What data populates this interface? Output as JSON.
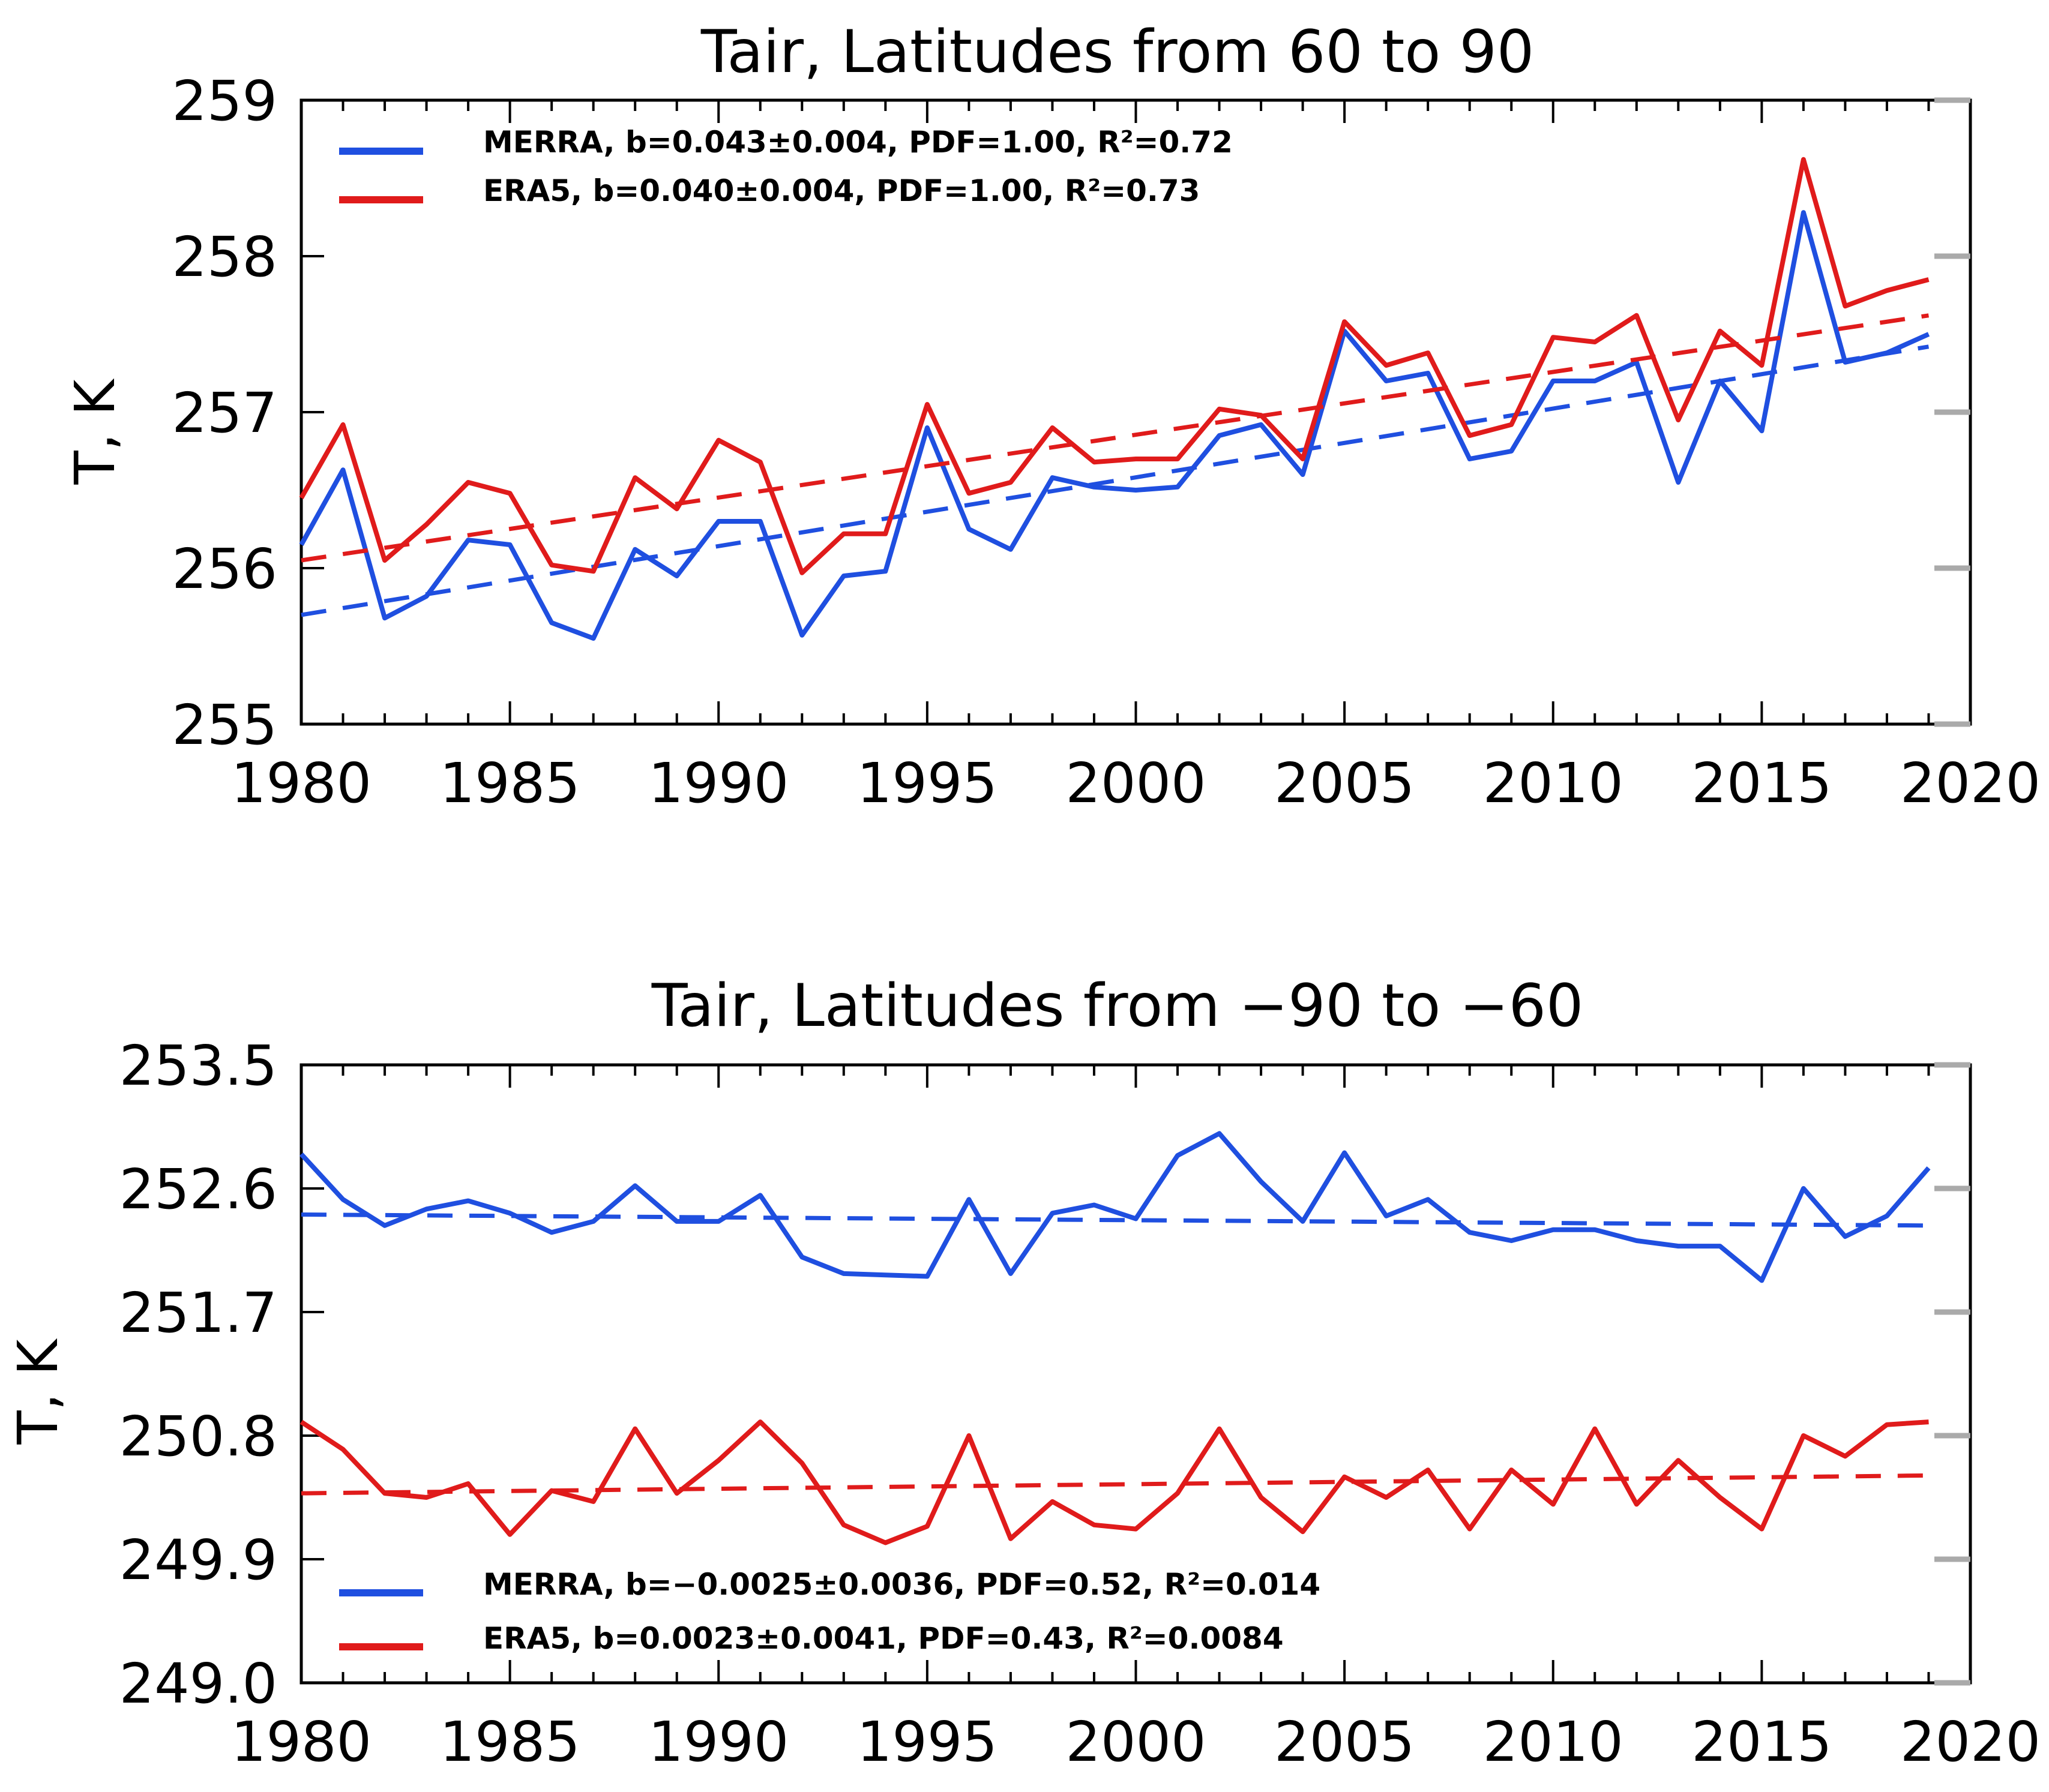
{
  "chart_data": [
    {
      "type": "line",
      "title": "Tair, Latitudes from 60 to 90",
      "xlabel": "",
      "ylabel": "T, K",
      "xlim": [
        1980,
        2020
      ],
      "ylim": [
        255,
        259
      ],
      "xticks": [
        1980,
        1985,
        1990,
        1995,
        2000,
        2005,
        2010,
        2015,
        2020
      ],
      "yticks": [
        255,
        256,
        257,
        258,
        259
      ],
      "ytick_labels": [
        "255",
        "256",
        "257",
        "258",
        "259"
      ],
      "grid": false,
      "legend_position": "top-left",
      "x": [
        1980,
        1981,
        1982,
        1983,
        1984,
        1985,
        1986,
        1987,
        1988,
        1989,
        1990,
        1991,
        1992,
        1993,
        1994,
        1995,
        1996,
        1997,
        1998,
        1999,
        2000,
        2001,
        2002,
        2003,
        2004,
        2005,
        2006,
        2007,
        2008,
        2009,
        2010,
        2011,
        2012,
        2013,
        2014,
        2015,
        2016,
        2017,
        2018,
        2019
      ],
      "series": [
        {
          "name": "MERRA",
          "legend_label": "MERRA, b=0.043±0.004, PDF=1.00, R²=0.72",
          "color": "#1f4fe0",
          "values": [
            256.15,
            256.63,
            255.68,
            255.82,
            256.18,
            256.15,
            255.65,
            255.55,
            256.12,
            255.95,
            256.3,
            256.3,
            255.57,
            255.95,
            255.98,
            256.9,
            256.25,
            256.12,
            256.58,
            256.52,
            256.5,
            256.52,
            256.85,
            256.92,
            256.6,
            257.52,
            257.2,
            257.25,
            256.7,
            256.75,
            257.2,
            257.2,
            257.32,
            256.55,
            257.2,
            256.88,
            258.28,
            257.32,
            257.38,
            257.5
          ],
          "trend": [
            255.7,
            257.42
          ]
        },
        {
          "name": "ERA5",
          "legend_label": "ERA5,  b=0.040±0.004, PDF=1.00, R²=0.73",
          "color": "#e01b1b",
          "values": [
            256.45,
            256.92,
            256.05,
            256.28,
            256.55,
            256.48,
            256.02,
            255.98,
            256.58,
            256.38,
            256.82,
            256.68,
            255.97,
            256.22,
            256.22,
            257.05,
            256.48,
            256.55,
            256.9,
            256.68,
            256.7,
            256.7,
            257.02,
            256.98,
            256.7,
            257.58,
            257.3,
            257.38,
            256.85,
            256.92,
            257.48,
            257.45,
            257.62,
            256.95,
            257.52,
            257.3,
            258.62,
            257.68,
            257.78,
            257.85
          ],
          "trend": [
            256.05,
            257.62
          ]
        }
      ]
    },
    {
      "type": "line",
      "title": "Tair, Latitudes from −90 to −60",
      "xlabel": "",
      "ylabel": "T, K",
      "xlim": [
        1980,
        2020
      ],
      "ylim": [
        249.0,
        253.5
      ],
      "xticks": [
        1980,
        1985,
        1990,
        1995,
        2000,
        2005,
        2010,
        2015,
        2020
      ],
      "yticks": [
        249.0,
        249.9,
        250.8,
        251.7,
        252.6,
        253.5
      ],
      "ytick_labels": [
        "249.0",
        "249.9",
        "250.8",
        "251.7",
        "252.6",
        "253.5"
      ],
      "grid": false,
      "legend_position": "bottom-left",
      "x": [
        1980,
        1981,
        1982,
        1983,
        1984,
        1985,
        1986,
        1987,
        1988,
        1989,
        1990,
        1991,
        1992,
        1993,
        1994,
        1995,
        1996,
        1997,
        1998,
        1999,
        2000,
        2001,
        2002,
        2003,
        2004,
        2005,
        2006,
        2007,
        2008,
        2009,
        2010,
        2011,
        2012,
        2013,
        2014,
        2015,
        2016,
        2017,
        2018,
        2019
      ],
      "series": [
        {
          "name": "MERRA",
          "legend_label": "MERRA, b=−0.0025±0.0036, PDF=0.52, R²=0.014",
          "color": "#1f4fe0",
          "values": [
            252.85,
            252.52,
            252.33,
            252.45,
            252.51,
            252.42,
            252.28,
            252.36,
            252.62,
            252.36,
            252.36,
            252.55,
            252.1,
            251.98,
            251.97,
            251.96,
            252.52,
            251.98,
            252.42,
            252.48,
            252.38,
            252.84,
            253.0,
            252.65,
            252.36,
            252.86,
            252.4,
            252.52,
            252.28,
            252.22,
            252.3,
            252.3,
            252.22,
            252.18,
            252.18,
            251.93,
            252.6,
            252.25,
            252.4,
            252.75
          ],
          "trend": [
            252.41,
            252.33
          ]
        },
        {
          "name": "ERA5",
          "legend_label": "ERA5,  b=0.0023±0.0041, PDF=0.43, R²=0.0084",
          "color": "#e01b1b",
          "values": [
            250.9,
            250.7,
            250.38,
            250.35,
            250.45,
            250.08,
            250.4,
            250.32,
            250.85,
            250.38,
            250.62,
            250.9,
            250.6,
            250.15,
            250.02,
            250.14,
            250.8,
            250.05,
            250.32,
            250.15,
            250.12,
            250.38,
            250.85,
            250.35,
            250.1,
            250.5,
            250.35,
            250.55,
            250.12,
            250.55,
            250.3,
            250.85,
            250.3,
            250.62,
            250.35,
            250.12,
            250.8,
            250.65,
            250.88,
            250.9
          ],
          "trend": [
            250.38,
            250.51
          ]
        }
      ]
    }
  ]
}
